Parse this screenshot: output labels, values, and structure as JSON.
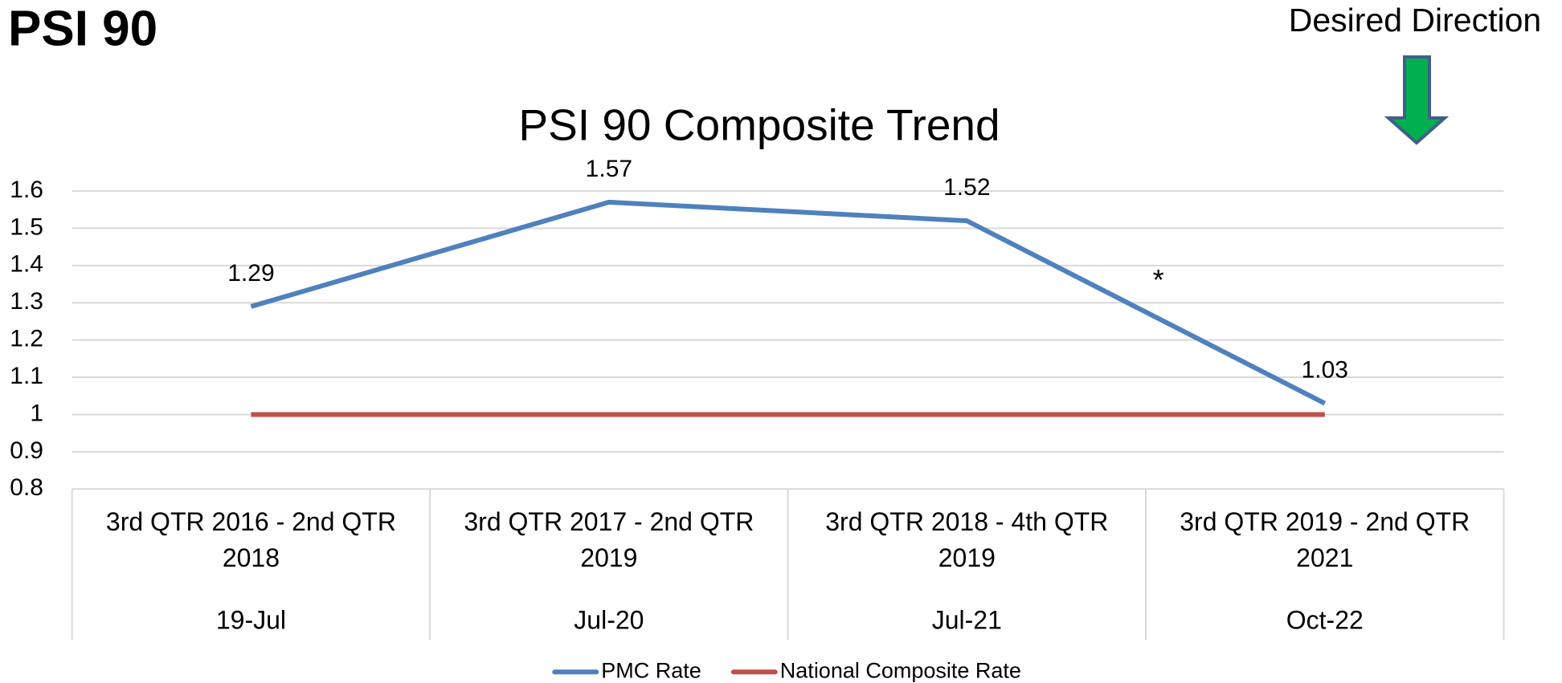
{
  "page_title": "PSI 90",
  "annotation_direction": "Desired Direction",
  "chart_data": {
    "type": "line",
    "title": "PSI 90 Composite Trend",
    "categories": [
      "3rd QTR 2016 - 2nd QTR 2018",
      "3rd QTR 2017 - 2nd QTR 2019",
      "3rd QTR 2018 - 4th QTR 2019",
      "3rd QTR 2019 - 2nd QTR 2021"
    ],
    "subcategories": [
      "19-Jul",
      "Jul-20",
      "Jul-21",
      "Oct-22"
    ],
    "series": [
      {
        "name": "PMC Rate",
        "color": "#4f81bd",
        "values": [
          1.29,
          1.57,
          1.52,
          1.03
        ],
        "data_labels": true
      },
      {
        "name": "National Composite Rate",
        "color": "#c0504d",
        "values": [
          1,
          1,
          1,
          1
        ],
        "data_labels": false
      }
    ],
    "ylim": [
      0.8,
      1.6
    ],
    "yticks": [
      0.8,
      0.9,
      1,
      1.1,
      1.2,
      1.3,
      1.4,
      1.5,
      1.6
    ],
    "grid": true,
    "legend": "bottom",
    "annotations": [
      {
        "text": "*"
      }
    ]
  }
}
